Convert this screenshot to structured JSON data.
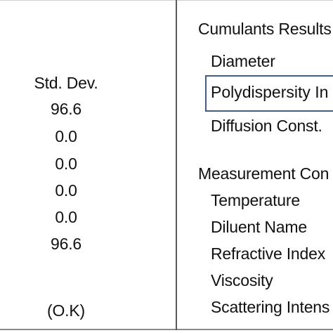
{
  "left_panel": {
    "header": "Std. Dev.",
    "values": [
      "96.6",
      "0.0",
      "0.0",
      "0.0",
      "0.0",
      "96.6"
    ],
    "status": "(O.K)"
  },
  "right_panel": {
    "cumulants_title": "Cumulants Results",
    "cumulants_items": [
      "Diameter",
      "Polydispersity In",
      "Diffusion Const."
    ],
    "measurement_title": "Measurement Con",
    "measurement_items": [
      "Temperature",
      "Diluent Name",
      "Refractive Index",
      "Viscosity",
      "Scattering Intens"
    ]
  }
}
